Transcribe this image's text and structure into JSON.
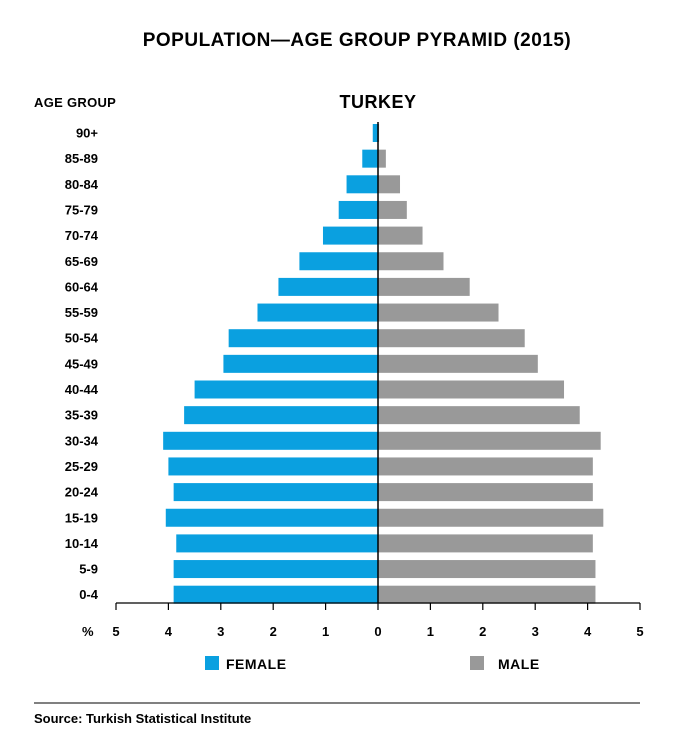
{
  "chart_data": {
    "type": "bar",
    "orientation": "horizontal",
    "title": "POPULATION—AGE GROUP PYRAMID (2015)",
    "subtitle": "TURKEY",
    "ylabel": "AGE GROUP",
    "xlabel": "%",
    "xlim": [
      -5,
      5
    ],
    "x_ticks": [
      "5",
      "4",
      "3",
      "2",
      "1",
      "0",
      "1",
      "2",
      "3",
      "4",
      "5"
    ],
    "legend_position": "bottom",
    "grid": false,
    "categories": [
      "90+",
      "85-89",
      "80-84",
      "75-79",
      "70-74",
      "65-69",
      "60-64",
      "55-59",
      "50-54",
      "45-49",
      "40-44",
      "35-39",
      "30-34",
      "25-29",
      "20-24",
      "15-19",
      "10-14",
      "5-9",
      "0-4"
    ],
    "series": [
      {
        "name": "FEMALE",
        "color": "#0aa0e0",
        "side": "left",
        "values": [
          0.1,
          0.3,
          0.6,
          0.75,
          1.05,
          1.5,
          1.9,
          2.3,
          2.85,
          2.95,
          3.5,
          3.7,
          4.1,
          4.0,
          3.9,
          4.05,
          3.85,
          3.9,
          3.9
        ]
      },
      {
        "name": "MALE",
        "color": "#999999",
        "side": "right",
        "values": [
          0.02,
          0.15,
          0.42,
          0.55,
          0.85,
          1.25,
          1.75,
          2.3,
          2.8,
          3.05,
          3.55,
          3.85,
          4.25,
          4.1,
          4.1,
          4.3,
          4.1,
          4.15,
          4.15
        ]
      }
    ],
    "source": "Source: Turkish Statistical Institute"
  }
}
